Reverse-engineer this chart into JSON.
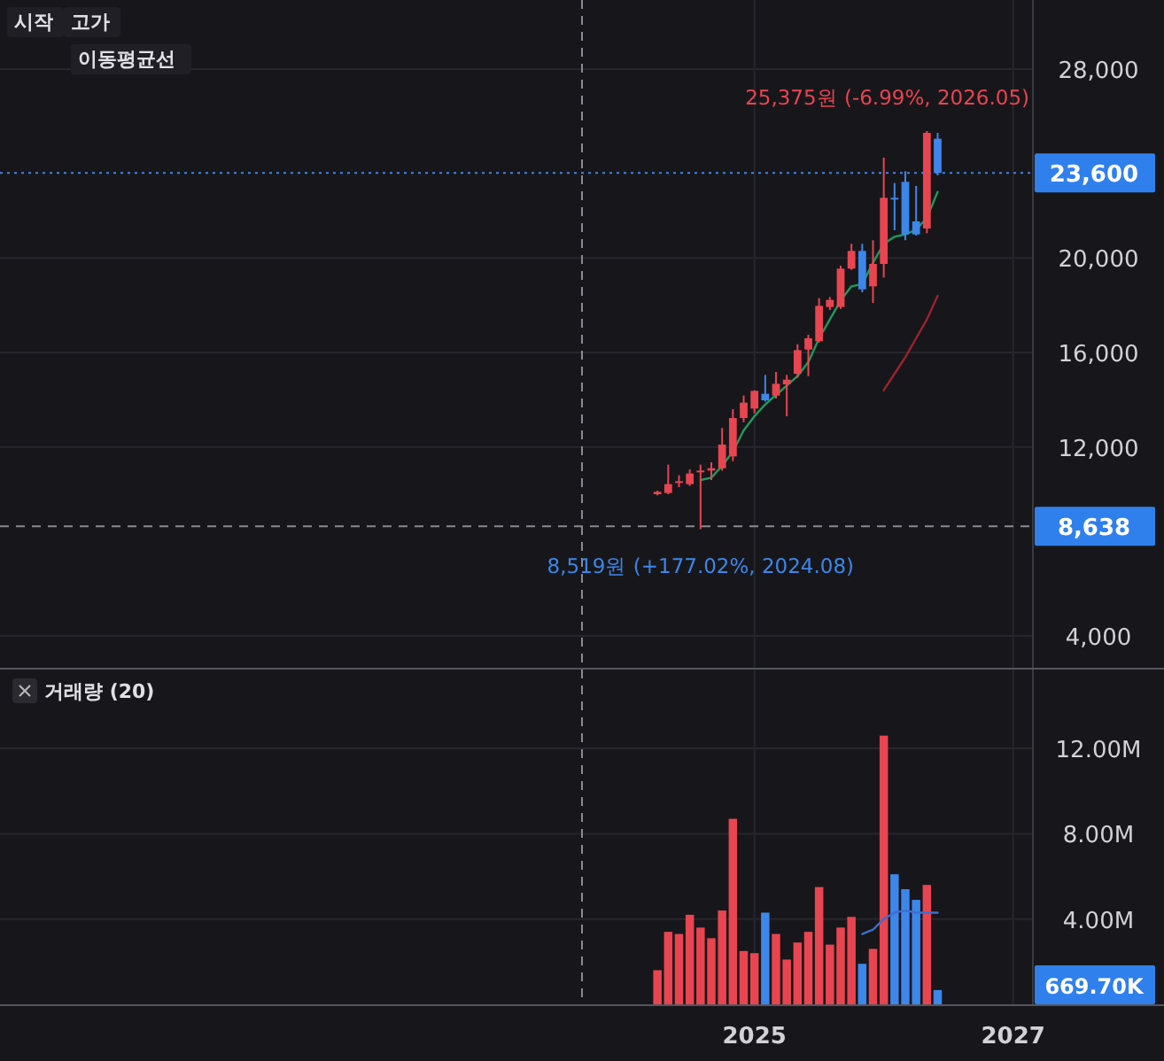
{
  "chart_data": [
    {
      "type": "candlestick",
      "annotations": [
        "시작",
        "고가",
        "이동평균선",
        {
          "text": "25,375원 (-6.99%, 2026.05)",
          "x": "2026-05",
          "y": 25375
        },
        {
          "text": "8,519원 (+177.02%, 2024.08)",
          "x": "2024-08",
          "y": 8519
        }
      ],
      "x": [
        "2024-04",
        "2024-05",
        "2024-06",
        "2024-07",
        "2024-08",
        "2024-09",
        "2024-10",
        "2024-11",
        "2024-12",
        "2025-01",
        "2025-02",
        "2025-03",
        "2025-04",
        "2025-05",
        "2025-06",
        "2025-07",
        "2025-08",
        "2025-09",
        "2025-10",
        "2025-11",
        "2025-12",
        "2026-01",
        "2026-02",
        "2026-03",
        "2026-04",
        "2026-05",
        "2026-06"
      ],
      "ohlc": [
        [
          10000,
          10150,
          9950,
          10100
        ],
        [
          10050,
          11250,
          10000,
          10425
        ],
        [
          10500,
          10800,
          10300,
          10550
        ],
        [
          10425,
          11050,
          10350,
          10875
        ],
        [
          10950,
          11250,
          8519,
          11000
        ],
        [
          11000,
          11350,
          10600,
          11100
        ],
        [
          11100,
          12800,
          11000,
          12100
        ],
        [
          11600,
          13600,
          11400,
          13225
        ],
        [
          13225,
          14175,
          13050,
          13875
        ],
        [
          13625,
          14400,
          13425,
          14375
        ],
        [
          14250,
          15050,
          13925,
          13975
        ],
        [
          14175,
          15175,
          14050,
          14675
        ],
        [
          14650,
          15050,
          13300,
          14850
        ],
        [
          15100,
          16350,
          14925,
          16100
        ],
        [
          16125,
          16750,
          15000,
          16600
        ],
        [
          16475,
          18300,
          16425,
          17975
        ],
        [
          17925,
          18350,
          17800,
          18225
        ],
        [
          17925,
          19675,
          17850,
          19550
        ],
        [
          19550,
          20600,
          19500,
          20300
        ],
        [
          20300,
          20600,
          18550,
          18675
        ],
        [
          18800,
          20750,
          18100,
          19750
        ],
        [
          19750,
          24250,
          19175,
          22550
        ],
        [
          22550,
          23175,
          21175,
          22475
        ],
        [
          23225,
          23675,
          20750,
          21000
        ],
        [
          21550,
          23050,
          20950,
          21000
        ],
        [
          21250,
          25375,
          21050,
          25300
        ],
        [
          25050,
          25300,
          23500,
          23600
        ]
      ],
      "colors": [
        "#e84550",
        "#e84550",
        "#e84550",
        "#e84550",
        "#e84550",
        "#e84550",
        "#e84550",
        "#e84550",
        "#e84550",
        "#e84550",
        "#3d86ea",
        "#e84550",
        "#e84550",
        "#e84550",
        "#e84550",
        "#e84550",
        "#e84550",
        "#e84550",
        "#e84550",
        "#3d86ea",
        "#e84550",
        "#e84550",
        "#3d86ea",
        "#3d86ea",
        "#3d86ea",
        "#e84550",
        "#3d86ea"
      ],
      "series": [
        {
          "type": "line",
          "color": "#1f9a5c",
          "x": [
            "2024-08",
            "2024-09",
            "2024-10",
            "2024-11",
            "2024-12",
            "2025-01",
            "2025-02",
            "2025-03",
            "2025-04",
            "2025-05",
            "2025-06",
            "2025-07",
            "2025-08",
            "2025-09",
            "2025-10",
            "2025-11",
            "2025-12",
            "2026-01",
            "2026-02",
            "2026-03",
            "2026-04",
            "2026-05",
            "2026-06"
          ],
          "values": [
            10600,
            10700,
            11200,
            11800,
            12700,
            13300,
            13800,
            14200,
            14600,
            15000,
            15600,
            16600,
            17400,
            18200,
            18800,
            18900,
            19800,
            20600,
            20900,
            21000,
            21200,
            21700,
            22800
          ]
        },
        {
          "type": "line",
          "color": "#9b2232",
          "x": [
            "2026-01",
            "2026-02",
            "2026-03",
            "2026-04",
            "2026-05",
            "2026-06"
          ],
          "values": [
            14400,
            15100,
            15800,
            16600,
            17400,
            18400
          ]
        }
      ],
      "xlim": [
        "2019-03",
        "2028-03"
      ],
      "ylim": [
        2650,
        30925
      ],
      "yticks": [
        {
          "value": 4000,
          "label": "4,000"
        },
        {
          "value": 12000,
          "label": "12,000"
        },
        {
          "value": 16000,
          "label": "16,000"
        },
        {
          "value": 20000,
          "label": "20,000"
        },
        {
          "value": 28000,
          "label": "28,000"
        }
      ],
      "ref_lines": [
        {
          "axis": "y",
          "value": 23600,
          "label": "23,600",
          "color": "#3d86ea",
          "line_style": "dotted"
        },
        {
          "axis": "y",
          "value": 8638,
          "label": "8,638",
          "color": "#8a8a90",
          "line_style": "dashed"
        },
        {
          "axis": "x",
          "value": "2023-09",
          "color": "#8a8a90",
          "line_style": "dashed"
        }
      ],
      "grid": true,
      "tick_labels": "y"
    },
    {
      "type": "bar",
      "title": "거래량 (20)",
      "x": [
        "2024-04",
        "2024-05",
        "2024-06",
        "2024-07",
        "2024-08",
        "2024-09",
        "2024-10",
        "2024-11",
        "2024-12",
        "2025-01",
        "2025-02",
        "2025-03",
        "2025-04",
        "2025-05",
        "2025-06",
        "2025-07",
        "2025-08",
        "2025-09",
        "2025-10",
        "2025-11",
        "2025-12",
        "2026-01",
        "2026-02",
        "2026-03",
        "2026-04",
        "2026-05",
        "2026-06"
      ],
      "series": [
        {
          "type": "bar",
          "colors": [
            "#e84550",
            "#e84550",
            "#e84550",
            "#e84550",
            "#e84550",
            "#e84550",
            "#e84550",
            "#e84550",
            "#e84550",
            "#e84550",
            "#3d86ea",
            "#e84550",
            "#e84550",
            "#e84550",
            "#e84550",
            "#e84550",
            "#e84550",
            "#e84550",
            "#e84550",
            "#3d86ea",
            "#e84550",
            "#e84550",
            "#3d86ea",
            "#3d86ea",
            "#3d86ea",
            "#e84550",
            "#3d86ea"
          ],
          "values": [
            1.6,
            3.4,
            3.3,
            4.2,
            3.6,
            3.1,
            4.4,
            8.7,
            2.5,
            2.4,
            4.3,
            3.3,
            2.1,
            2.9,
            3.4,
            5.5,
            2.8,
            3.6,
            4.1,
            1.9,
            2.6,
            12.6,
            6.1,
            5.4,
            4.9,
            5.6,
            0.6697
          ]
        },
        {
          "type": "line",
          "color": "#3d6fd0",
          "x": [
            "2025-11",
            "2025-12",
            "2026-01",
            "2026-02",
            "2026-03",
            "2026-04",
            "2026-05",
            "2026-06"
          ],
          "values": [
            3.3,
            3.5,
            4.0,
            4.3,
            4.4,
            4.3,
            4.3,
            4.3
          ]
        }
      ],
      "annotations": [
        "669.70K"
      ],
      "xlim": [
        "2019-03",
        "2028-03"
      ],
      "xticks": [
        {
          "value": "2025-01",
          "label": "2025"
        },
        {
          "value": "2027-01",
          "label": "2027"
        }
      ],
      "ylim": [
        0,
        15.7
      ],
      "yticks": [
        {
          "value": 4,
          "label": "4.00M"
        },
        {
          "value": 8,
          "label": "8.00M"
        },
        {
          "value": 12,
          "label": "12.00M"
        }
      ],
      "ref_lines": [
        {
          "axis": "x",
          "value": "2023-09",
          "color": "#8a8a90",
          "line_style": "dashed"
        }
      ],
      "grid": true
    }
  ]
}
